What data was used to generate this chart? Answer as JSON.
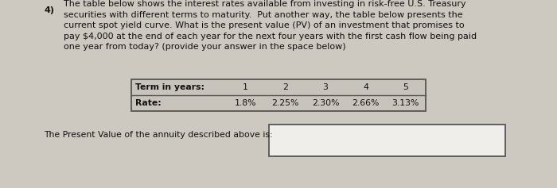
{
  "background_color": "#cdc9c0",
  "question_number": "4)",
  "paragraph_lines": [
    "The table below shows the interest rates available from investing in risk-free U.S. Treasury",
    "securities with different terms to maturity.  Put another way, the table below presents the",
    "current spot yield curve. What is the present value (PV) of an investment that promises to",
    "pay $4,000 at the end of each year for the next four years with the first cash flow being paid",
    "one year from today? (provide your answer in the space below)"
  ],
  "table_label_row": "Term in years:",
  "table_label_row2": "Rate:",
  "table_years": [
    "1",
    "2",
    "3",
    "4",
    "5"
  ],
  "table_rates": [
    "1.8%",
    "2.25%",
    "2.30%",
    "2.66%",
    "3.13%"
  ],
  "answer_label": "The Present Value of the annuity described above is:",
  "font_size_paragraph": 8.0,
  "font_size_table": 7.8,
  "font_size_answer": 7.8,
  "text_color": "#111111",
  "table_box_edge": "#555555",
  "table_bg": "#c8c4bb",
  "answer_box_edge": "#555555",
  "answer_box_fill": "#f0eeeb"
}
